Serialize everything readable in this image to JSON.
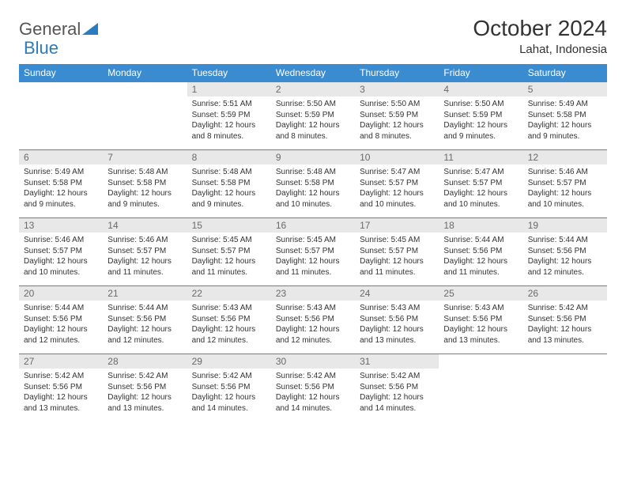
{
  "logo": {
    "part1": "General",
    "part2": "Blue"
  },
  "title": "October 2024",
  "location": "Lahat, Indonesia",
  "colors": {
    "header_bg": "#3a8bd0",
    "header_fg": "#ffffff",
    "daynum_bg": "#e8e8e8",
    "daynum_fg": "#6a6a6a",
    "border": "#3a8bd0",
    "logo_accent": "#2a7cbf"
  },
  "weekdays": [
    "Sunday",
    "Monday",
    "Tuesday",
    "Wednesday",
    "Thursday",
    "Friday",
    "Saturday"
  ],
  "weeks": [
    [
      null,
      null,
      {
        "n": "1",
        "sr": "Sunrise: 5:51 AM",
        "ss": "Sunset: 5:59 PM",
        "dl": "Daylight: 12 hours and 8 minutes."
      },
      {
        "n": "2",
        "sr": "Sunrise: 5:50 AM",
        "ss": "Sunset: 5:59 PM",
        "dl": "Daylight: 12 hours and 8 minutes."
      },
      {
        "n": "3",
        "sr": "Sunrise: 5:50 AM",
        "ss": "Sunset: 5:59 PM",
        "dl": "Daylight: 12 hours and 8 minutes."
      },
      {
        "n": "4",
        "sr": "Sunrise: 5:50 AM",
        "ss": "Sunset: 5:59 PM",
        "dl": "Daylight: 12 hours and 9 minutes."
      },
      {
        "n": "5",
        "sr": "Sunrise: 5:49 AM",
        "ss": "Sunset: 5:58 PM",
        "dl": "Daylight: 12 hours and 9 minutes."
      }
    ],
    [
      {
        "n": "6",
        "sr": "Sunrise: 5:49 AM",
        "ss": "Sunset: 5:58 PM",
        "dl": "Daylight: 12 hours and 9 minutes."
      },
      {
        "n": "7",
        "sr": "Sunrise: 5:48 AM",
        "ss": "Sunset: 5:58 PM",
        "dl": "Daylight: 12 hours and 9 minutes."
      },
      {
        "n": "8",
        "sr": "Sunrise: 5:48 AM",
        "ss": "Sunset: 5:58 PM",
        "dl": "Daylight: 12 hours and 9 minutes."
      },
      {
        "n": "9",
        "sr": "Sunrise: 5:48 AM",
        "ss": "Sunset: 5:58 PM",
        "dl": "Daylight: 12 hours and 10 minutes."
      },
      {
        "n": "10",
        "sr": "Sunrise: 5:47 AM",
        "ss": "Sunset: 5:57 PM",
        "dl": "Daylight: 12 hours and 10 minutes."
      },
      {
        "n": "11",
        "sr": "Sunrise: 5:47 AM",
        "ss": "Sunset: 5:57 PM",
        "dl": "Daylight: 12 hours and 10 minutes."
      },
      {
        "n": "12",
        "sr": "Sunrise: 5:46 AM",
        "ss": "Sunset: 5:57 PM",
        "dl": "Daylight: 12 hours and 10 minutes."
      }
    ],
    [
      {
        "n": "13",
        "sr": "Sunrise: 5:46 AM",
        "ss": "Sunset: 5:57 PM",
        "dl": "Daylight: 12 hours and 10 minutes."
      },
      {
        "n": "14",
        "sr": "Sunrise: 5:46 AM",
        "ss": "Sunset: 5:57 PM",
        "dl": "Daylight: 12 hours and 11 minutes."
      },
      {
        "n": "15",
        "sr": "Sunrise: 5:45 AM",
        "ss": "Sunset: 5:57 PM",
        "dl": "Daylight: 12 hours and 11 minutes."
      },
      {
        "n": "16",
        "sr": "Sunrise: 5:45 AM",
        "ss": "Sunset: 5:57 PM",
        "dl": "Daylight: 12 hours and 11 minutes."
      },
      {
        "n": "17",
        "sr": "Sunrise: 5:45 AM",
        "ss": "Sunset: 5:57 PM",
        "dl": "Daylight: 12 hours and 11 minutes."
      },
      {
        "n": "18",
        "sr": "Sunrise: 5:44 AM",
        "ss": "Sunset: 5:56 PM",
        "dl": "Daylight: 12 hours and 11 minutes."
      },
      {
        "n": "19",
        "sr": "Sunrise: 5:44 AM",
        "ss": "Sunset: 5:56 PM",
        "dl": "Daylight: 12 hours and 12 minutes."
      }
    ],
    [
      {
        "n": "20",
        "sr": "Sunrise: 5:44 AM",
        "ss": "Sunset: 5:56 PM",
        "dl": "Daylight: 12 hours and 12 minutes."
      },
      {
        "n": "21",
        "sr": "Sunrise: 5:44 AM",
        "ss": "Sunset: 5:56 PM",
        "dl": "Daylight: 12 hours and 12 minutes."
      },
      {
        "n": "22",
        "sr": "Sunrise: 5:43 AM",
        "ss": "Sunset: 5:56 PM",
        "dl": "Daylight: 12 hours and 12 minutes."
      },
      {
        "n": "23",
        "sr": "Sunrise: 5:43 AM",
        "ss": "Sunset: 5:56 PM",
        "dl": "Daylight: 12 hours and 12 minutes."
      },
      {
        "n": "24",
        "sr": "Sunrise: 5:43 AM",
        "ss": "Sunset: 5:56 PM",
        "dl": "Daylight: 12 hours and 13 minutes."
      },
      {
        "n": "25",
        "sr": "Sunrise: 5:43 AM",
        "ss": "Sunset: 5:56 PM",
        "dl": "Daylight: 12 hours and 13 minutes."
      },
      {
        "n": "26",
        "sr": "Sunrise: 5:42 AM",
        "ss": "Sunset: 5:56 PM",
        "dl": "Daylight: 12 hours and 13 minutes."
      }
    ],
    [
      {
        "n": "27",
        "sr": "Sunrise: 5:42 AM",
        "ss": "Sunset: 5:56 PM",
        "dl": "Daylight: 12 hours and 13 minutes."
      },
      {
        "n": "28",
        "sr": "Sunrise: 5:42 AM",
        "ss": "Sunset: 5:56 PM",
        "dl": "Daylight: 12 hours and 13 minutes."
      },
      {
        "n": "29",
        "sr": "Sunrise: 5:42 AM",
        "ss": "Sunset: 5:56 PM",
        "dl": "Daylight: 12 hours and 14 minutes."
      },
      {
        "n": "30",
        "sr": "Sunrise: 5:42 AM",
        "ss": "Sunset: 5:56 PM",
        "dl": "Daylight: 12 hours and 14 minutes."
      },
      {
        "n": "31",
        "sr": "Sunrise: 5:42 AM",
        "ss": "Sunset: 5:56 PM",
        "dl": "Daylight: 12 hours and 14 minutes."
      },
      null,
      null
    ]
  ]
}
